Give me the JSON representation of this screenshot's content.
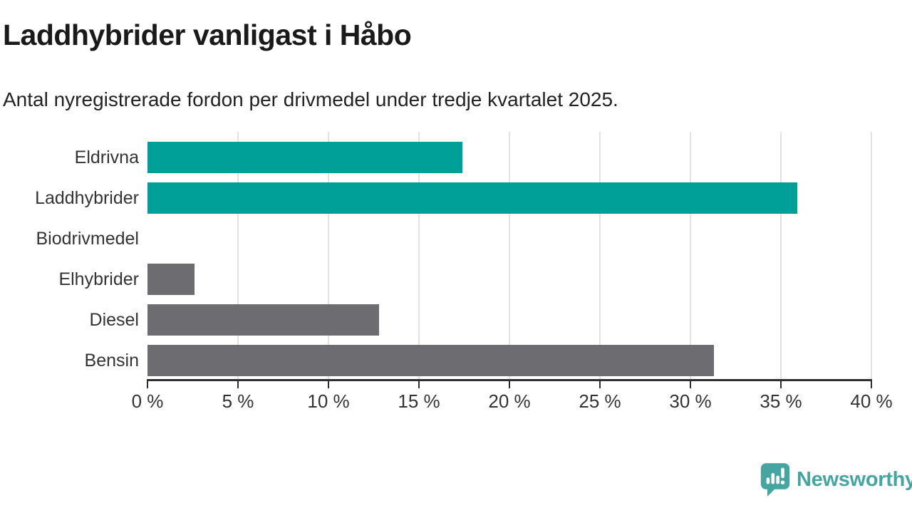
{
  "chart_data": {
    "type": "bar",
    "orientation": "horizontal",
    "title": "Laddhybrider vanligast i Håbo",
    "subtitle": "Antal nyregistrerade fordon per drivmedel under tredje kvartalet 2025.",
    "categories": [
      "Eldrivna",
      "Laddhybrider",
      "Biodrivmedel",
      "Elhybrider",
      "Diesel",
      "Bensin"
    ],
    "values": [
      17.4,
      35.9,
      0,
      2.6,
      12.8,
      31.3
    ],
    "unit": "%",
    "bar_colors": [
      "#00a099",
      "#00a099",
      "#6c6c71",
      "#6c6c71",
      "#6c6c71",
      "#6c6c71"
    ],
    "xlim": [
      0,
      40
    ],
    "x_ticks": [
      0,
      5,
      10,
      15,
      20,
      25,
      30,
      35,
      40
    ],
    "x_tick_labels": [
      "0 %",
      "5 %",
      "10 %",
      "15 %",
      "20 %",
      "25 %",
      "30 %",
      "35 %",
      "40 %"
    ],
    "grid": true,
    "legend": false
  },
  "colors": {
    "teal_bar": "#00a099",
    "gray_bar": "#6c6c71",
    "gridline": "#e2e2e2",
    "axis": "#2e2e2e",
    "brand_teal": "#46a5a1",
    "title_text": "#1a1a1a",
    "tick_text": "#333333"
  },
  "footer": {
    "brand": "Newsworthy"
  }
}
